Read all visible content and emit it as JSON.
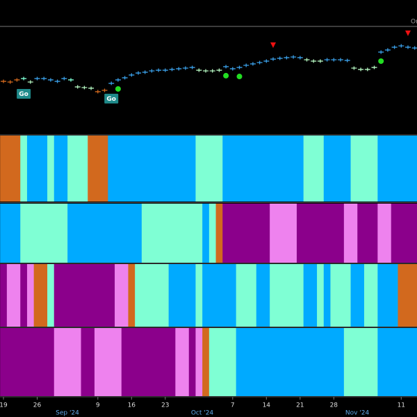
{
  "chart_data": {
    "type": "gonogo",
    "corner_label": "Or",
    "categories": [
      "19",
      null,
      null,
      null,
      null,
      "26",
      null,
      null,
      null,
      null,
      null,
      null,
      null,
      null,
      "9",
      null,
      null,
      null,
      null,
      "16",
      null,
      null,
      null,
      null,
      "23",
      null,
      null,
      null,
      null,
      null,
      null,
      null,
      null,
      null,
      "7",
      null,
      null,
      null,
      null,
      "14",
      null,
      null,
      null,
      null,
      "21",
      null,
      null,
      null,
      null,
      "28",
      null,
      null,
      null,
      null,
      null,
      null,
      null,
      null,
      null,
      "11",
      null,
      null
    ],
    "month_labels": [
      {
        "value": 10,
        "label": "Sep '24"
      },
      {
        "value": 30,
        "label": "Oct '24"
      },
      {
        "value": 53,
        "label": "Nov '24"
      }
    ],
    "ylim": [
      0,
      100
    ],
    "palette": {
      "orange": "#d2691e",
      "aqua": "#7fffd4",
      "blue": "#00aaff",
      "purple": "#8b008b",
      "pink": "#ee82ee",
      "pale": "#b4f5c0",
      "price_blue": "#3a9fe8"
    },
    "series": [
      {
        "values": [
          45.6,
          45,
          46.9,
          48.1,
          45,
          48.1,
          48.1,
          46.9,
          45.6,
          48.1,
          46.9,
          40.6,
          40,
          39.4,
          36.3,
          37.5,
          43.8,
          46.9,
          48.8,
          51.3,
          53.1,
          53.8,
          55,
          55.6,
          55.6,
          56.3,
          56.9,
          57.5,
          58.1,
          55.6,
          55,
          55,
          55.6,
          58.8,
          56.9,
          58.1,
          60,
          61.3,
          62.5,
          63.8,
          65.6,
          66.3,
          66.9,
          67.5,
          66.9,
          65,
          63.8,
          63.8,
          65,
          65,
          65,
          64.4,
          57.5,
          56.3,
          56.3,
          58.1,
          71.9,
          73.8,
          76.3,
          77.5,
          76.3,
          75.6
        ],
        "color_runs": [
          {
            "color": "orange",
            "bars": 3
          },
          {
            "color": "aqua",
            "bars": 1
          },
          {
            "color": "pale",
            "bars": 1
          },
          {
            "color": "price_blue",
            "bars": 5
          },
          {
            "color": "aqua",
            "bars": 1
          },
          {
            "color": "pale",
            "bars": 3
          },
          {
            "color": "orange",
            "bars": 2
          },
          {
            "color": "price_blue",
            "bars": 13
          },
          {
            "color": "pale",
            "bars": 4
          },
          {
            "color": "price_blue",
            "bars": 12
          },
          {
            "color": "pale",
            "bars": 3
          },
          {
            "color": "price_blue",
            "bars": 4
          },
          {
            "color": "pale",
            "bars": 4
          },
          {
            "color": "price_blue",
            "bars": 6
          }
        ]
      }
    ],
    "annotations": [
      {
        "text": "Go",
        "index": 3
      },
      {
        "text": "Go",
        "index": 16
      }
    ],
    "entry_points": [
      17,
      33,
      35,
      56
    ],
    "exit_points": [
      40,
      60
    ],
    "panels": [
      [
        {
          "color": "orange",
          "bars": 3
        },
        {
          "color": "aqua",
          "bars": 1
        },
        {
          "color": "blue",
          "bars": 3
        },
        {
          "color": "aqua",
          "bars": 1
        },
        {
          "color": "blue",
          "bars": 2
        },
        {
          "color": "aqua",
          "bars": 3
        },
        {
          "color": "orange",
          "bars": 3
        },
        {
          "color": "blue",
          "bars": 13
        },
        {
          "color": "aqua",
          "bars": 4
        },
        {
          "color": "blue",
          "bars": 12
        },
        {
          "color": "aqua",
          "bars": 3
        },
        {
          "color": "blue",
          "bars": 4
        },
        {
          "color": "aqua",
          "bars": 4
        },
        {
          "color": "blue",
          "bars": 6
        }
      ],
      [
        {
          "color": "blue",
          "bars": 3
        },
        {
          "color": "aqua",
          "bars": 7
        },
        {
          "color": "blue",
          "bars": 11
        },
        {
          "color": "aqua",
          "bars": 9
        },
        {
          "color": "blue",
          "bars": 1
        },
        {
          "color": "aqua",
          "bars": 1
        },
        {
          "color": "orange",
          "bars": 1
        },
        {
          "color": "purple",
          "bars": 7
        },
        {
          "color": "pink",
          "bars": 4
        },
        {
          "color": "purple",
          "bars": 7
        },
        {
          "color": "pink",
          "bars": 2
        },
        {
          "color": "purple",
          "bars": 3
        },
        {
          "color": "pink",
          "bars": 2
        },
        {
          "color": "purple",
          "bars": 4
        }
      ],
      [
        {
          "color": "purple",
          "bars": 1
        },
        {
          "color": "pink",
          "bars": 2
        },
        {
          "color": "purple",
          "bars": 1
        },
        {
          "color": "pink",
          "bars": 1
        },
        {
          "color": "orange",
          "bars": 2
        },
        {
          "color": "aqua",
          "bars": 1
        },
        {
          "color": "purple",
          "bars": 9
        },
        {
          "color": "pink",
          "bars": 2
        },
        {
          "color": "orange",
          "bars": 1
        },
        {
          "color": "aqua",
          "bars": 5
        },
        {
          "color": "blue",
          "bars": 4
        },
        {
          "color": "aqua",
          "bars": 1
        },
        {
          "color": "blue",
          "bars": 5
        },
        {
          "color": "aqua",
          "bars": 3
        },
        {
          "color": "blue",
          "bars": 2
        },
        {
          "color": "aqua",
          "bars": 5
        },
        {
          "color": "blue",
          "bars": 2
        },
        {
          "color": "aqua",
          "bars": 1
        },
        {
          "color": "blue",
          "bars": 1
        },
        {
          "color": "aqua",
          "bars": 3
        },
        {
          "color": "blue",
          "bars": 2
        },
        {
          "color": "aqua",
          "bars": 2
        },
        {
          "color": "blue",
          "bars": 3
        },
        {
          "color": "orange",
          "bars": 3
        }
      ],
      [
        {
          "color": "purple",
          "bars": 8
        },
        {
          "color": "pink",
          "bars": 4
        },
        {
          "color": "purple",
          "bars": 2
        },
        {
          "color": "pink",
          "bars": 4
        },
        {
          "color": "purple",
          "bars": 8
        },
        {
          "color": "pink",
          "bars": 2
        },
        {
          "color": "purple",
          "bars": 1
        },
        {
          "color": "pink",
          "bars": 1
        },
        {
          "color": "orange",
          "bars": 1
        },
        {
          "color": "aqua",
          "bars": 4
        },
        {
          "color": "blue",
          "bars": 16
        },
        {
          "color": "aqua",
          "bars": 5
        },
        {
          "color": "blue",
          "bars": 6
        }
      ]
    ]
  }
}
